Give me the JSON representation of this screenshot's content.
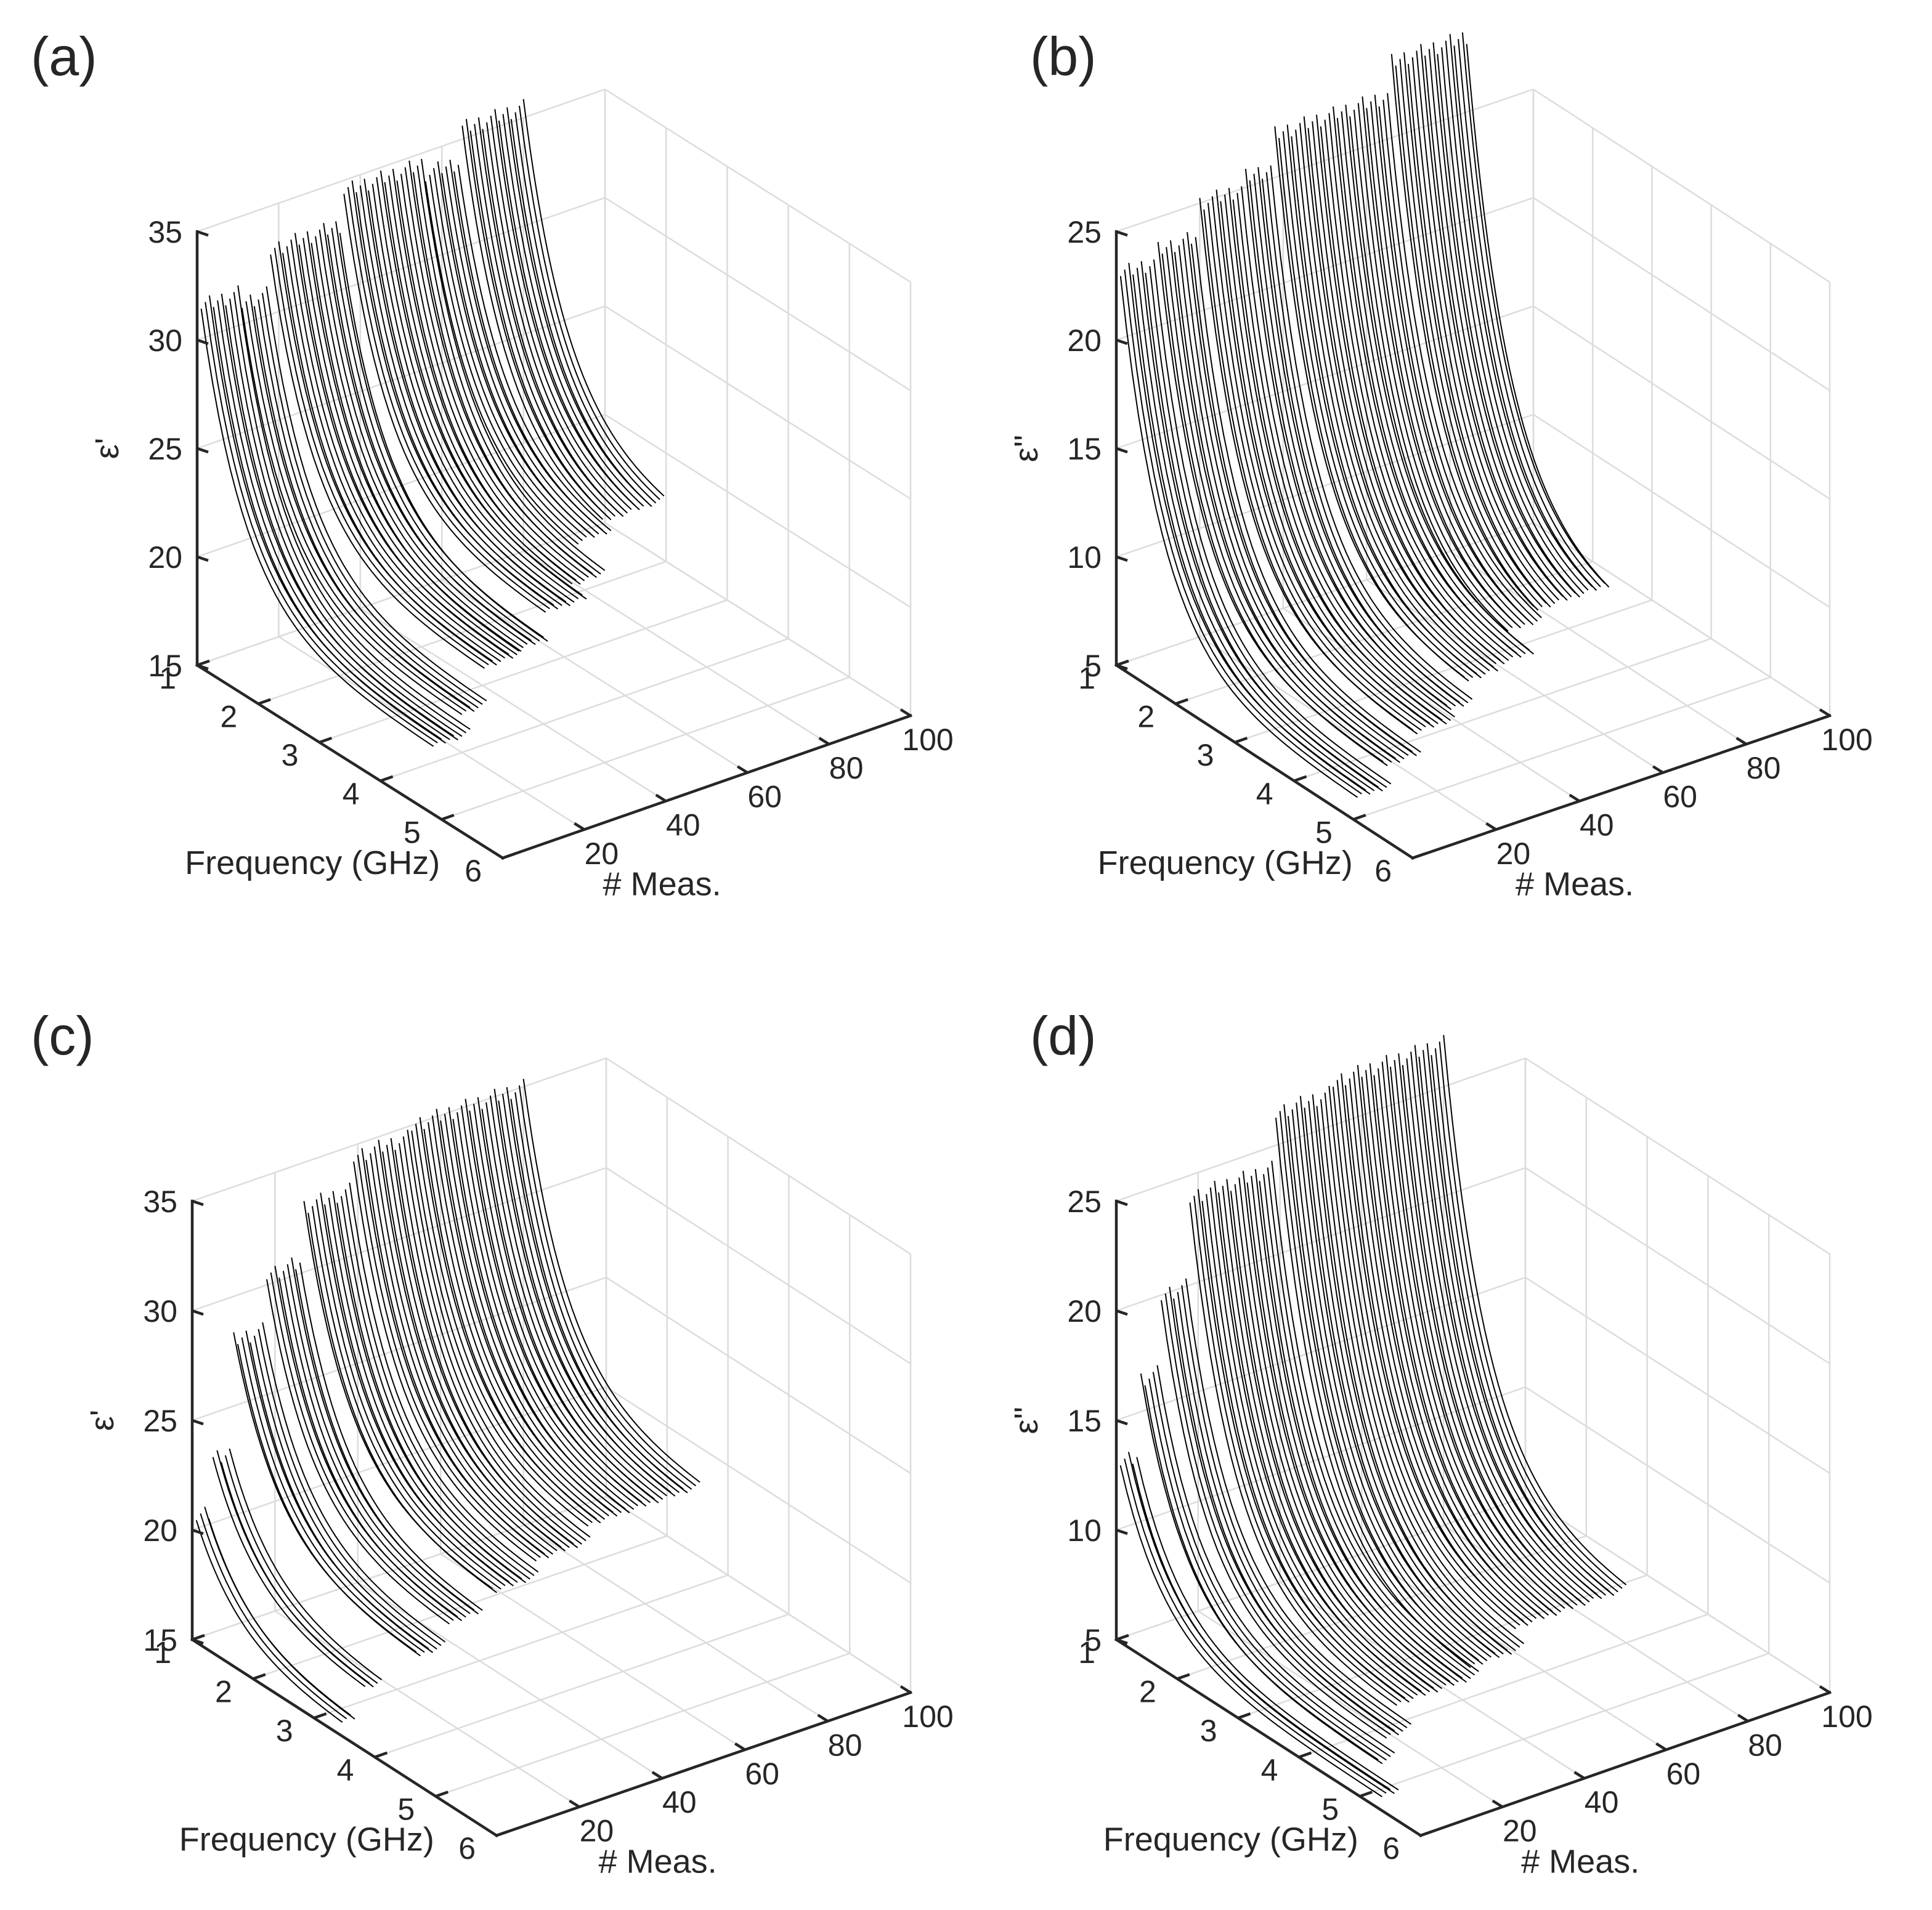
{
  "figure_title": "",
  "chart_data": [
    {
      "panel": "(a)",
      "type": "line",
      "style": "3d-waterfall",
      "xlabel": "Frequency (GHz)",
      "ylabel": "# Meas.",
      "zlabel": "ε'",
      "xlim": [
        1,
        6
      ],
      "ylim": [
        0,
        100
      ],
      "zlim": [
        15,
        35
      ],
      "xticks": [
        "1",
        "2",
        "3",
        "4",
        "5",
        "6"
      ],
      "yticks": [
        "20",
        "40",
        "60",
        "80",
        "100"
      ],
      "zticks": [
        "15",
        "20",
        "25",
        "30",
        "35"
      ],
      "freq_start_ghz": 1,
      "series_groups": [
        {
          "meas_start": 1,
          "meas_end": 10,
          "value_at_1ghz": 31.5,
          "value_at_fmax": 18.0,
          "fmax_ghz": 4.8
        },
        {
          "meas_start": 11,
          "meas_end": 17,
          "value_at_1ghz": 31.0,
          "value_at_fmax": 18.5,
          "fmax_ghz": 4.6
        },
        {
          "meas_start": 18,
          "meas_end": 27,
          "value_at_1ghz": 33.0,
          "value_at_fmax": 20.0,
          "fmax_ghz": 4.5
        },
        {
          "meas_start": 28,
          "meas_end": 35,
          "value_at_1ghz": 33.0,
          "value_at_fmax": 20.0,
          "fmax_ghz": 4.4
        },
        {
          "meas_start": 36,
          "meas_end": 46,
          "value_at_1ghz": 34.5,
          "value_at_fmax": 21.0,
          "fmax_ghz": 4.3
        },
        {
          "meas_start": 47,
          "meas_end": 55,
          "value_at_1ghz": 34.5,
          "value_at_fmax": 21.0,
          "fmax_ghz": 4.0
        },
        {
          "meas_start": 56,
          "meas_end": 64,
          "value_at_1ghz": 34.0,
          "value_at_fmax": 21.5,
          "fmax_ghz": 3.5
        },
        {
          "meas_start": 65,
          "meas_end": 80,
          "value_at_1ghz": 35.5,
          "value_at_fmax": 21.5,
          "fmax_ghz": 3.3
        }
      ]
    },
    {
      "panel": "(b)",
      "type": "line",
      "style": "3d-waterfall",
      "xlabel": "Frequency (GHz)",
      "ylabel": "# Meas.",
      "zlabel": "ε''",
      "xlim": [
        1,
        6
      ],
      "ylim": [
        0,
        100
      ],
      "zlim": [
        5,
        25
      ],
      "xticks": [
        "1",
        "2",
        "3",
        "4",
        "5",
        "6"
      ],
      "yticks": [
        "20",
        "40",
        "60",
        "80",
        "100"
      ],
      "zticks": [
        "5",
        "10",
        "15",
        "20",
        "25"
      ],
      "freq_start_ghz": 1,
      "series_groups": [
        {
          "meas_start": 1,
          "meas_end": 9,
          "value_at_1ghz": 23.0,
          "value_at_fmax": 6.0,
          "fmax_ghz": 5.0
        },
        {
          "meas_start": 10,
          "meas_end": 19,
          "value_at_1ghz": 23.5,
          "value_at_fmax": 6.5,
          "fmax_ghz": 4.8
        },
        {
          "meas_start": 20,
          "meas_end": 30,
          "value_at_1ghz": 25.0,
          "value_at_fmax": 7.0,
          "fmax_ghz": 4.6
        },
        {
          "meas_start": 31,
          "meas_end": 37,
          "value_at_1ghz": 25.5,
          "value_at_fmax": 7.0,
          "fmax_ghz": 4.4
        },
        {
          "meas_start": 38,
          "meas_end": 46,
          "value_at_1ghz": 27.0,
          "value_at_fmax": 7.5,
          "fmax_ghz": 4.2
        },
        {
          "meas_start": 47,
          "meas_end": 56,
          "value_at_1ghz": 27.0,
          "value_at_fmax": 7.5,
          "fmax_ghz": 4.1
        },
        {
          "meas_start": 57,
          "meas_end": 65,
          "value_at_1ghz": 27.0,
          "value_at_fmax": 7.5,
          "fmax_ghz": 3.6
        },
        {
          "meas_start": 66,
          "meas_end": 84,
          "value_at_1ghz": 28.5,
          "value_at_fmax": 7.5,
          "fmax_ghz": 3.4
        }
      ]
    },
    {
      "panel": "(c)",
      "type": "line",
      "style": "3d-waterfall",
      "xlabel": "Frequency (GHz)",
      "ylabel": "# Meas.",
      "zlabel": "ε'",
      "xlim": [
        1,
        6
      ],
      "ylim": [
        0,
        100
      ],
      "zlim": [
        15,
        35
      ],
      "xticks": [
        "1",
        "2",
        "3",
        "4",
        "5",
        "6"
      ],
      "yticks": [
        "20",
        "40",
        "60",
        "80",
        "100"
      ],
      "zticks": [
        "15",
        "20",
        "25",
        "30",
        "35"
      ],
      "freq_start_ghz": 1,
      "series_groups": [
        {
          "meas_start": 1,
          "meas_end": 4,
          "value_at_1ghz": 20.5,
          "value_at_fmax": 15.5,
          "fmax_ghz": 3.4
        },
        {
          "meas_start": 5,
          "meas_end": 9,
          "value_at_1ghz": 23.0,
          "value_at_fmax": 17.0,
          "fmax_ghz": 3.5
        },
        {
          "meas_start": 10,
          "meas_end": 17,
          "value_at_1ghz": 28.0,
          "value_at_fmax": 19.0,
          "fmax_ghz": 4.0
        },
        {
          "meas_start": 18,
          "meas_end": 26,
          "value_at_1ghz": 30.5,
          "value_at_fmax": 20.0,
          "fmax_ghz": 4.0
        },
        {
          "meas_start": 27,
          "meas_end": 38,
          "value_at_1ghz": 33.0,
          "value_at_fmax": 21.0,
          "fmax_ghz": 4.1
        },
        {
          "meas_start": 39,
          "meas_end": 52,
          "value_at_1ghz": 34.5,
          "value_at_fmax": 21.5,
          "fmax_ghz": 4.0
        },
        {
          "meas_start": 53,
          "meas_end": 80,
          "value_at_1ghz": 35.0,
          "value_at_fmax": 22.0,
          "fmax_ghz": 3.9
        }
      ]
    },
    {
      "panel": "(d)",
      "type": "line",
      "style": "3d-waterfall",
      "xlabel": "Frequency (GHz)",
      "ylabel": "# Meas.",
      "zlabel": "ε''",
      "xlim": [
        1,
        6
      ],
      "ylim": [
        0,
        100
      ],
      "zlim": [
        5,
        25
      ],
      "xticks": [
        "1",
        "2",
        "3",
        "4",
        "5",
        "6"
      ],
      "yticks": [
        "20",
        "40",
        "60",
        "80",
        "100"
      ],
      "zticks": [
        "5",
        "10",
        "15",
        "20",
        "25"
      ],
      "freq_start_ghz": 1,
      "series_groups": [
        {
          "meas_start": 1,
          "meas_end": 5,
          "value_at_1ghz": 13.0,
          "value_at_fmax": 5.5,
          "fmax_ghz": 5.3
        },
        {
          "meas_start": 6,
          "meas_end": 10,
          "value_at_1ghz": 16.5,
          "value_at_fmax": 6.0,
          "fmax_ghz": 4.9
        },
        {
          "meas_start": 11,
          "meas_end": 17,
          "value_at_1ghz": 20.0,
          "value_at_fmax": 6.5,
          "fmax_ghz": 4.7
        },
        {
          "meas_start": 18,
          "meas_end": 38,
          "value_at_1ghz": 24.0,
          "value_at_fmax": 7.0,
          "fmax_ghz": 4.4
        },
        {
          "meas_start": 39,
          "meas_end": 52,
          "value_at_1ghz": 26.5,
          "value_at_fmax": 7.0,
          "fmax_ghz": 4.2
        },
        {
          "meas_start": 53,
          "meas_end": 80,
          "value_at_1ghz": 27.0,
          "value_at_fmax": 7.5,
          "fmax_ghz": 4.0
        }
      ]
    }
  ]
}
